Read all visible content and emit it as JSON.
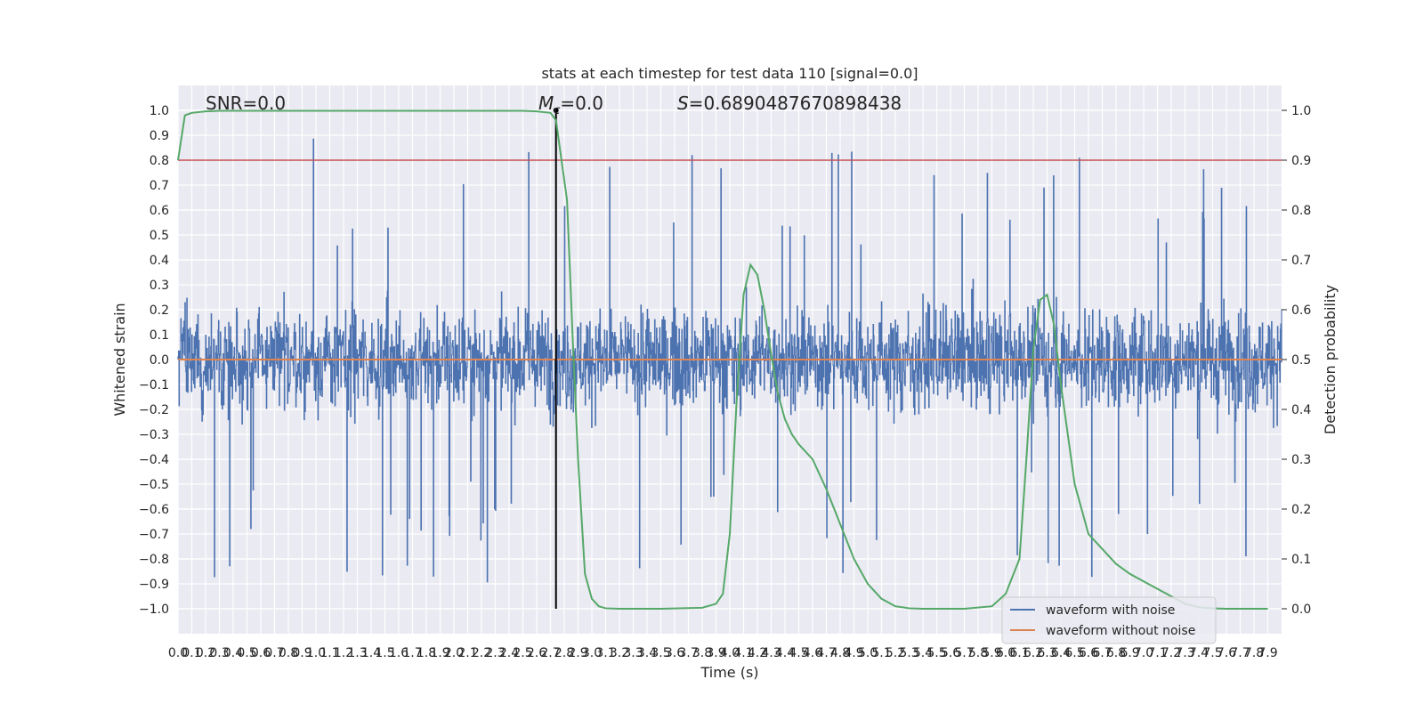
{
  "chart_data": {
    "type": "line",
    "title": "stats at each timestep for test data 110 [signal=0.0]",
    "xlabel": "Time (s)",
    "ylabel": "Whitened strain",
    "ylabel_right": "Detection probability",
    "xlim": [
      0.0,
      8.0
    ],
    "ylim": [
      -1.1,
      1.1
    ],
    "ylim_right": [
      -0.05,
      1.05
    ],
    "x_ticks": [
      "0.0",
      "0.1",
      "0.2",
      "0.3",
      "0.4",
      "0.5",
      "0.6",
      "0.7",
      "0.8",
      "0.9",
      "1.0",
      "1.1",
      "1.2",
      "1.3",
      "1.4",
      "1.5",
      "1.6",
      "1.7",
      "1.8",
      "1.9",
      "2.0",
      "2.1",
      "2.2",
      "2.3",
      "2.4",
      "2.5",
      "2.6",
      "2.7",
      "2.8",
      "2.9",
      "3.0",
      "3.1",
      "3.2",
      "3.3",
      "3.4",
      "3.5",
      "3.6",
      "3.7",
      "3.8",
      "3.9",
      "4.0",
      "4.1",
      "4.2",
      "4.3",
      "4.4",
      "4.5",
      "4.6",
      "4.7",
      "4.8",
      "4.9",
      "5.0",
      "5.1",
      "5.2",
      "5.3",
      "5.4",
      "5.5",
      "5.6",
      "5.7",
      "5.8",
      "5.9",
      "6.0",
      "6.1",
      "6.2",
      "6.3",
      "6.4",
      "6.5",
      "6.6",
      "6.7",
      "6.8",
      "6.9",
      "7.0",
      "7.1",
      "7.2",
      "7.3",
      "7.4",
      "7.5",
      "7.6",
      "7.7",
      "7.8",
      "7.9"
    ],
    "y_ticks": [
      "1.0",
      "0.9",
      "0.8",
      "0.7",
      "0.6",
      "0.5",
      "0.4",
      "0.3",
      "0.2",
      "0.1",
      "0.0",
      "−0.1",
      "−0.2",
      "−0.3",
      "−0.4",
      "−0.5",
      "−0.6",
      "−0.7",
      "−0.8",
      "−0.9",
      "−1.0"
    ],
    "y_ticks_right": [
      "1.0",
      "0.9",
      "0.8",
      "0.7",
      "0.6",
      "0.5",
      "0.4",
      "0.3",
      "0.2",
      "0.1",
      "0.0"
    ],
    "grid": true,
    "legend_position": "bottom-right",
    "series": [
      {
        "name": "waveform with noise",
        "color": "#4c72b0",
        "axis": "left",
        "description_values": "dense noise, mostly within ±0.45, peaks near ±0.97"
      },
      {
        "name": "waveform without noise",
        "color": "#dd8452",
        "axis": "left",
        "values_constant": 0.0
      },
      {
        "color": "#55a868",
        "axis": "right",
        "x": [
          0.0,
          0.05,
          0.1,
          0.2,
          0.3,
          0.5,
          1.0,
          1.5,
          2.0,
          2.5,
          2.6,
          2.7,
          2.74,
          2.78,
          2.82,
          2.86,
          2.9,
          2.95,
          3.0,
          3.05,
          3.1,
          3.2,
          3.3,
          3.5,
          3.8,
          3.9,
          3.95,
          4.0,
          4.05,
          4.1,
          4.15,
          4.2,
          4.25,
          4.3,
          4.35,
          4.4,
          4.45,
          4.5,
          4.6,
          4.7,
          4.8,
          4.9,
          5.0,
          5.1,
          5.2,
          5.3,
          5.4,
          5.5,
          5.7,
          5.9,
          6.0,
          6.1,
          6.15,
          6.2,
          6.25,
          6.3,
          6.35,
          6.4,
          6.45,
          6.5,
          6.55,
          6.6,
          6.7,
          6.8,
          6.9,
          7.0,
          7.1,
          7.2,
          7.3,
          7.4,
          7.5,
          7.6,
          7.7,
          7.9
        ],
        "y": [
          0.9,
          0.99,
          0.995,
          0.998,
          0.999,
          0.999,
          0.999,
          0.999,
          0.999,
          0.999,
          0.998,
          0.995,
          0.98,
          0.9,
          0.82,
          0.55,
          0.3,
          0.07,
          0.02,
          0.005,
          0.001,
          0.0,
          0.0,
          0.0,
          0.002,
          0.01,
          0.03,
          0.15,
          0.42,
          0.63,
          0.69,
          0.67,
          0.6,
          0.51,
          0.43,
          0.38,
          0.35,
          0.33,
          0.3,
          0.24,
          0.17,
          0.1,
          0.05,
          0.02,
          0.005,
          0.001,
          0.0,
          0.0,
          0.0,
          0.005,
          0.03,
          0.1,
          0.3,
          0.52,
          0.62,
          0.63,
          0.57,
          0.45,
          0.35,
          0.25,
          0.2,
          0.15,
          0.12,
          0.09,
          0.07,
          0.055,
          0.04,
          0.025,
          0.01,
          0.003,
          0.001,
          0.0,
          0.0,
          0.0
        ]
      }
    ],
    "threshold": {
      "value_right": 0.9,
      "color": "#c44e52"
    },
    "marker_line": {
      "x": 2.74,
      "color": "#000000"
    },
    "annotations": {
      "snr": "SNR=0.0",
      "mc_symbol": "M",
      "mc_subscript": "c",
      "mc_value": "=0.0",
      "s_symbol": "S",
      "s_value": "=0.6890487670898438"
    }
  }
}
